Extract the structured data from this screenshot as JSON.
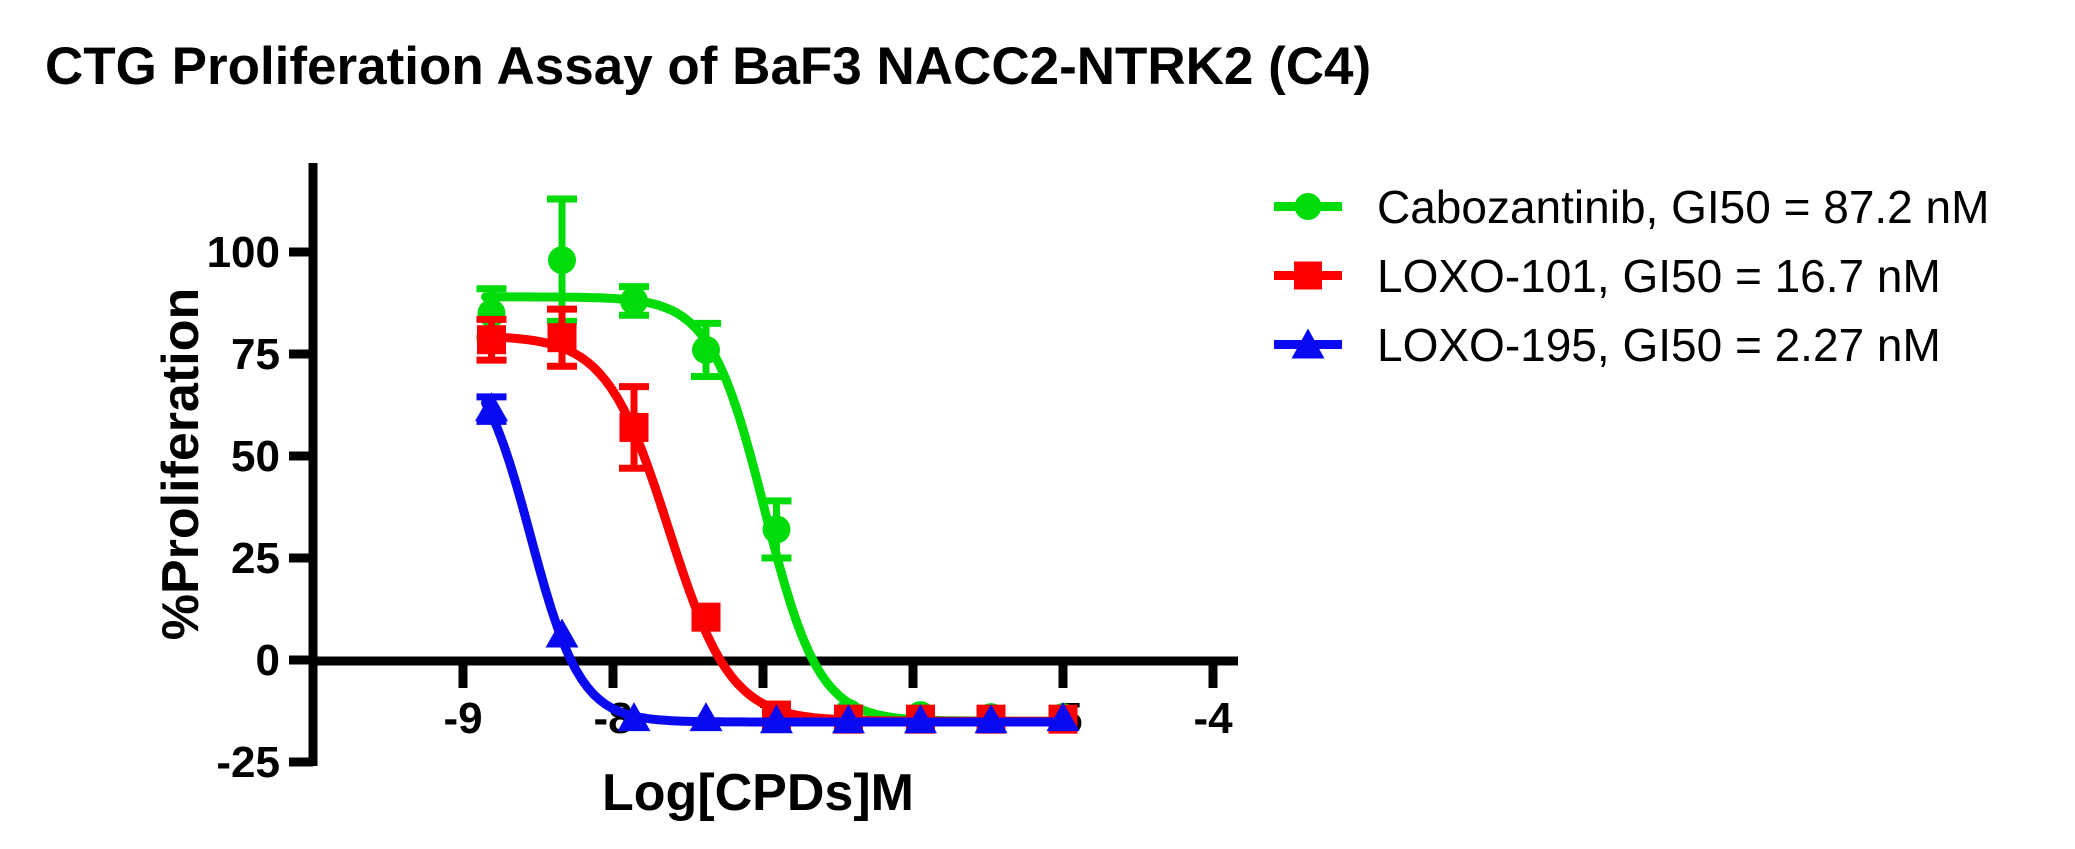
{
  "title": "CTG Proliferation Assay of BaF3 NACC2-NTRK2 (C4)",
  "chart_data": {
    "type": "line",
    "title": "CTG Proliferation Assay of BaF3 NACC2-NTRK2 (C4)",
    "xlabel": "Log[CPDs]M",
    "ylabel": "%Proliferation",
    "x_ticks": [
      -9,
      -8,
      -7,
      -6,
      -5,
      -4
    ],
    "y_ticks": [
      100,
      75,
      50,
      25,
      0,
      -25
    ],
    "xlim": [
      -10,
      -3.85
    ],
    "ylim": [
      -25,
      122
    ],
    "grid": false,
    "legend_position": "right",
    "x": [
      -8.81,
      -8.34,
      -7.86,
      -7.38,
      -6.91,
      -6.43,
      -5.95,
      -5.48,
      -5.0
    ],
    "series": [
      {
        "name": "Cabozantinib",
        "legend": "Cabozantinib, GI50 = 87.2 nM",
        "gi50_nM": 87.2,
        "color": "#00DC0A",
        "marker": "circle",
        "values": [
          85,
          98,
          88,
          76,
          32,
          -13,
          -13.5,
          -14,
          -14
        ],
        "errors": [
          6,
          15,
          3.5,
          6.5,
          7,
          0,
          0,
          0,
          0
        ],
        "fit": {
          "top": 89,
          "bottom": -15,
          "logx50": -6.99,
          "hill": 2.4
        }
      },
      {
        "name": "LOXO-101",
        "legend": "LOXO-101, GI50 = 16.7 nM",
        "gi50_nM": 16.7,
        "color": "#FA0000",
        "marker": "square",
        "values": [
          78.5,
          79,
          57,
          10.5,
          -13.5,
          -14.5,
          -14.5,
          -14.5,
          -14.5
        ],
        "errors": [
          5,
          7,
          10,
          0,
          0,
          0,
          0,
          0,
          0
        ],
        "fit": {
          "top": 79.5,
          "bottom": -15,
          "logx50": -7.63,
          "hill": 2.1
        }
      },
      {
        "name": "LOXO-195",
        "legend": "LOXO-195, GI50 = 2.27 nM",
        "gi50_nM": 2.27,
        "color": "#0A0AF0",
        "marker": "triangle",
        "values": [
          61.5,
          6,
          -14.5,
          -14.5,
          -15,
          -15,
          -15,
          -15,
          -14.5
        ],
        "errors": [
          3,
          0,
          0,
          0,
          0,
          0,
          0,
          0,
          0
        ],
        "fit": {
          "top": 76,
          "bottom": -15.2,
          "logx50": -8.55,
          "hill": 2.6
        }
      }
    ]
  }
}
